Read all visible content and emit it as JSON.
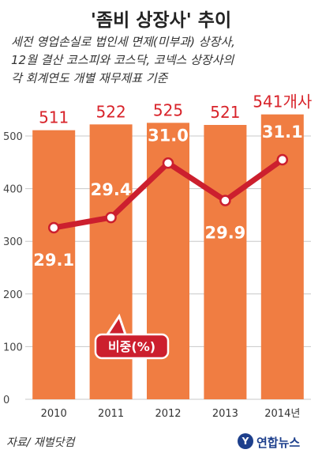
{
  "title": "'좀비 상장사' 추이",
  "note_lines": [
    "세전 영업손실로 법인세 면제(미부과) 상장사,",
    "12월 결산 코스피와 코스닥, 코넥스 상장사의",
    "각 회계연도 개별 재무제표 기준"
  ],
  "source": "자료/ 재벌닷컴",
  "logo_text": "연합뉴스",
  "colors": {
    "bar": "#f07d42",
    "line": "#cc1f2e",
    "bar_label": "#d8232a",
    "grid": "#c8c8c8"
  },
  "chart_data": {
    "type": "bar",
    "categories": [
      "2010",
      "2011",
      "2012",
      "2013",
      "2014년"
    ],
    "ylim": [
      0,
      550
    ],
    "yticks": [
      0,
      100,
      200,
      300,
      400,
      500
    ],
    "series": [
      {
        "values": [
          511,
          522,
          525,
          521,
          541
        ],
        "labels": [
          "511",
          "522",
          "525",
          "521",
          "541개사"
        ]
      },
      {
        "name": "비중(%)",
        "type": "line",
        "values": [
          29.1,
          29.4,
          31.0,
          29.9,
          31.1
        ],
        "labels": [
          "29.1",
          "29.4",
          "31.0",
          "29.9",
          "31.1"
        ]
      }
    ]
  }
}
